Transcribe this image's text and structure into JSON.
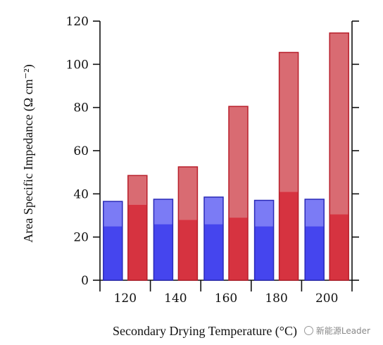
{
  "chart_data": {
    "type": "bar",
    "categories": [
      "120",
      "140",
      "160",
      "180",
      "200"
    ],
    "ylim": [
      0,
      120
    ],
    "yticks": [
      0,
      20,
      40,
      60,
      80,
      100,
      120
    ],
    "xlabel": "Secondary Drying Temperature (°C)",
    "ylabel": "Area Specific Impedance (Ω cm⁻²)",
    "series": [
      {
        "color": "#4545ee",
        "light": "#7b7bf5",
        "stroke": "#2a2ab8",
        "lower": [
          25,
          26,
          26,
          25,
          25
        ],
        "total": [
          36.5,
          37.5,
          38.5,
          37,
          37.5
        ]
      },
      {
        "color": "#d63340",
        "light": "#d96b72",
        "stroke": "#b81e2a",
        "lower": [
          35,
          28,
          29,
          41,
          30.5
        ],
        "total": [
          48.5,
          52.5,
          80.5,
          105.5,
          114.5
        ]
      }
    ]
  },
  "watermark": {
    "text": "新能源Leader",
    "icon": "wechat-icon"
  }
}
